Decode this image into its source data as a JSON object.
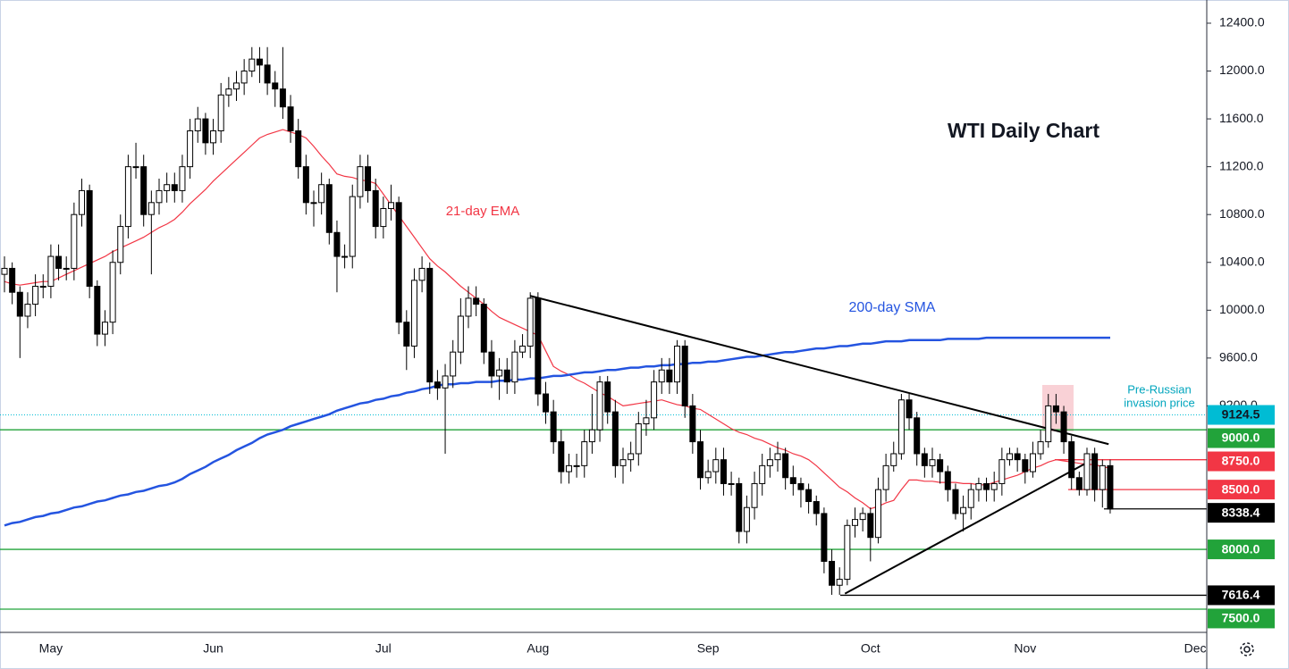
{
  "chart_data": {
    "type": "candlestick",
    "title": "WTI Daily Chart",
    "categories": [
      null,
      null,
      null,
      null,
      null,
      null,
      "May",
      null,
      null,
      null,
      null,
      null,
      null,
      null,
      null,
      null,
      null,
      null,
      null,
      null,
      null,
      null,
      null,
      null,
      null,
      null,
      null,
      "Jun",
      null,
      null,
      null,
      null,
      null,
      null,
      null,
      null,
      null,
      null,
      null,
      null,
      null,
      null,
      null,
      null,
      null,
      null,
      null,
      null,
      null,
      "Jul",
      null,
      null,
      null,
      null,
      null,
      null,
      null,
      null,
      null,
      null,
      null,
      null,
      null,
      null,
      null,
      null,
      null,
      null,
      null,
      "Aug",
      null,
      null,
      null,
      null,
      null,
      null,
      null,
      null,
      null,
      null,
      null,
      null,
      null,
      null,
      null,
      null,
      null,
      null,
      null,
      null,
      null,
      "Sep",
      null,
      null,
      null,
      null,
      null,
      null,
      null,
      null,
      null,
      null,
      null,
      null,
      null,
      null,
      null,
      null,
      null,
      null,
      null,
      null,
      "Oct",
      null,
      null,
      null,
      null,
      null,
      null,
      null,
      null,
      null,
      null,
      null,
      null,
      null,
      null,
      null,
      null,
      null,
      null,
      null,
      "Nov",
      null,
      null,
      null,
      null,
      null,
      null,
      null,
      null,
      null,
      null,
      null,
      null,
      null,
      null,
      null,
      null,
      null,
      null,
      null,
      null,
      null,
      "Dec",
      null,
      null,
      null,
      null,
      null
    ],
    "open": [
      10300,
      10350,
      10150,
      9950,
      10050,
      10200,
      10200,
      10450,
      10350,
      10350,
      10800,
      11000,
      10200,
      9800,
      9900,
      10400,
      10700,
      11200,
      11200,
      10800,
      10900,
      11000,
      11050,
      11000,
      11200,
      11500,
      11600,
      11400,
      11500,
      11800,
      11850,
      11900,
      12000,
      12100,
      12050,
      11900,
      11850,
      11700,
      11500,
      11200,
      10900,
      10900,
      11050,
      10650,
      10450,
      10450,
      10950,
      11200,
      11000,
      10700,
      10850,
      10900,
      9900,
      9700,
      10250,
      10350,
      9400,
      9350,
      9450,
      9650,
      9950,
      10100,
      10050,
      9650,
      9450,
      9500,
      9400,
      9650,
      9700,
      10100,
      9300,
      9150,
      8900,
      8650,
      8700,
      8700,
      8900,
      9000,
      9400,
      9150,
      8700,
      8750,
      8800,
      9050,
      9100,
      9400,
      9500,
      9400,
      9700,
      9200,
      8900,
      8600,
      8650,
      8750,
      8550,
      8550,
      8150,
      8350,
      8550,
      8700,
      8750,
      8800,
      8600,
      8550,
      8500,
      8400,
      8300,
      7900,
      7700,
      7750,
      8200,
      8250,
      8300,
      8100,
      8500,
      8700,
      8800,
      9250,
      9100,
      8800,
      8700,
      8750,
      8650,
      8500,
      8300,
      8350,
      8500,
      8550,
      8500,
      8550,
      8750,
      8800,
      8750,
      8650,
      8800,
      8900,
      9200,
      9150,
      8900,
      8600,
      8500,
      8800,
      8500,
      8700,
      null,
      null,
      null,
      null,
      null,
      null,
      null,
      null,
      null,
      null,
      null,
      null,
      null,
      null,
      null,
      null
    ],
    "high": [
      10450,
      10400,
      10200,
      10150,
      10300,
      10300,
      10550,
      10550,
      10450,
      10900,
      11100,
      11050,
      10250,
      10000,
      10500,
      10800,
      11300,
      11400,
      11300,
      11000,
      11100,
      11150,
      11150,
      11300,
      11600,
      11700,
      11650,
      11600,
      11900,
      11950,
      12000,
      12100,
      12200,
      12200,
      12200,
      12000,
      12200,
      11800,
      11600,
      11300,
      11000,
      11150,
      11100,
      10750,
      10550,
      11050,
      11300,
      11300,
      11100,
      10950,
      11050,
      10950,
      10000,
      10350,
      10450,
      10400,
      9500,
      9550,
      9750,
      10100,
      10200,
      10200,
      10100,
      9750,
      9600,
      9600,
      9750,
      9800,
      10150,
      10150,
      9400,
      9250,
      9000,
      8800,
      8800,
      9000,
      9300,
      9450,
      9450,
      9250,
      8850,
      8900,
      9150,
      9250,
      9500,
      9600,
      9600,
      9750,
      9750,
      9300,
      9000,
      8750,
      8850,
      8850,
      8650,
      8600,
      8450,
      8650,
      8800,
      8850,
      8900,
      8850,
      8700,
      8600,
      8550,
      8450,
      8350,
      8000,
      7850,
      8250,
      8350,
      8350,
      8350,
      8600,
      8800,
      8900,
      9300,
      9300,
      9150,
      8850,
      8850,
      8800,
      8700,
      8550,
      8450,
      8550,
      8600,
      8600,
      8650,
      8850,
      8850,
      8850,
      8800,
      8900,
      9000,
      9300,
      9300,
      9200,
      8950,
      8650,
      8850,
      8850,
      8750,
      8750,
      null,
      null,
      null,
      null,
      null,
      null,
      null,
      null,
      null,
      null,
      null,
      null,
      null,
      null,
      null,
      null
    ],
    "low": [
      10150,
      10050,
      9600,
      9850,
      9950,
      10100,
      10100,
      10250,
      10250,
      10250,
      10700,
      10100,
      9700,
      9700,
      9800,
      10300,
      10600,
      11100,
      10700,
      10300,
      10800,
      10900,
      10900,
      10900,
      11100,
      11400,
      11300,
      11300,
      11400,
      11700,
      11750,
      11800,
      11950,
      11900,
      11800,
      11700,
      11600,
      11400,
      11100,
      10800,
      10700,
      10800,
      10550,
      10150,
      10350,
      10350,
      10850,
      10900,
      10600,
      10600,
      10750,
      9800,
      9500,
      9600,
      10150,
      9300,
      9250,
      8800,
      9350,
      9550,
      9850,
      9950,
      9550,
      9350,
      9250,
      9300,
      9300,
      9600,
      9600,
      9200,
      9050,
      8800,
      8550,
      8550,
      8600,
      8600,
      8800,
      8900,
      9050,
      8600,
      8550,
      8650,
      8700,
      8950,
      9000,
      9300,
      9300,
      9300,
      9100,
      8800,
      8500,
      8550,
      8550,
      8450,
      8450,
      8050,
      8050,
      8250,
      8450,
      8600,
      8650,
      8500,
      8450,
      8350,
      8300,
      8200,
      7800,
      7620,
      7620,
      7700,
      8100,
      8150,
      7900,
      8050,
      8400,
      8650,
      8750,
      9000,
      8700,
      8600,
      8600,
      8550,
      8400,
      8250,
      8150,
      8250,
      8400,
      8400,
      8400,
      8450,
      8700,
      8650,
      8550,
      8600,
      8750,
      8850,
      9050,
      8800,
      8500,
      8450,
      8450,
      8400,
      8350,
      8300,
      null,
      null,
      null,
      null,
      null,
      null,
      null,
      null,
      null,
      null,
      null,
      null,
      null,
      null,
      null,
      null
    ],
    "close": [
      10350,
      10150,
      9950,
      10050,
      10200,
      10200,
      10450,
      10350,
      10350,
      10800,
      11000,
      10200,
      9800,
      9900,
      10400,
      10700,
      11200,
      11200,
      10800,
      10900,
      11000,
      11050,
      11000,
      11200,
      11500,
      11600,
      11400,
      11500,
      11800,
      11850,
      11900,
      12000,
      12100,
      12050,
      11900,
      11850,
      11700,
      11500,
      11200,
      10900,
      10900,
      11050,
      10650,
      10450,
      10450,
      10950,
      11200,
      11000,
      10700,
      10850,
      10900,
      9900,
      9700,
      10250,
      10350,
      9400,
      9350,
      9450,
      9650,
      9950,
      10100,
      10050,
      9650,
      9450,
      9500,
      9400,
      9650,
      9700,
      10100,
      9300,
      9150,
      8900,
      8650,
      8700,
      8700,
      8900,
      9000,
      9400,
      9150,
      8700,
      8750,
      8800,
      9050,
      9100,
      9400,
      9500,
      9400,
      9700,
      9200,
      8900,
      8600,
      8650,
      8750,
      8550,
      8550,
      8150,
      8350,
      8550,
      8700,
      8750,
      8800,
      8600,
      8550,
      8500,
      8400,
      8300,
      7900,
      7700,
      7750,
      8200,
      8250,
      8300,
      8100,
      8500,
      8700,
      8800,
      9250,
      9100,
      8800,
      8700,
      8750,
      8650,
      8500,
      8300,
      8350,
      8500,
      8550,
      8500,
      8550,
      8750,
      8800,
      8750,
      8650,
      8800,
      8900,
      9200,
      9150,
      8900,
      8600,
      8500,
      8800,
      8500,
      8700,
      8338,
      null,
      null,
      null,
      null,
      null,
      null,
      null,
      null,
      null,
      null,
      null,
      null,
      null,
      null,
      null,
      null
    ],
    "up_color": "#ffffff",
    "down_color": "#000000",
    "series": [
      {
        "name": "21-day EMA",
        "color": "#f23645",
        "values": [
          10240,
          10220,
          10210,
          10220,
          10230,
          10240,
          10240,
          10270,
          10300,
          10330,
          10360,
          10390,
          10420,
          10450,
          10490,
          10520,
          10550,
          10580,
          10610,
          10650,
          10690,
          10720,
          10760,
          10820,
          10890,
          10950,
          11010,
          11080,
          11140,
          11200,
          11260,
          11320,
          11380,
          11440,
          11470,
          11490,
          11510,
          11490,
          11470,
          11440,
          11370,
          11290,
          11220,
          11140,
          11120,
          11110,
          11090,
          11080,
          11060,
          10970,
          10880,
          10790,
          10700,
          10610,
          10520,
          10430,
          10370,
          10320,
          10260,
          10200,
          10150,
          10100,
          10050,
          9990,
          9940,
          9910,
          9880,
          9850,
          9820,
          9790,
          9660,
          9530,
          9490,
          9460,
          9420,
          9390,
          9350,
          9310,
          9280,
          9240,
          9200,
          9210,
          9220,
          9230,
          9240,
          9250,
          9230,
          9210,
          9200,
          9180,
          9170,
          9130,
          9090,
          9050,
          9010,
          8980,
          8960,
          8930,
          8910,
          8880,
          8850,
          8830,
          8800,
          8780,
          8750,
          8700,
          8640,
          8580,
          8520,
          8480,
          8430,
          8390,
          8340,
          8360,
          8390,
          8410,
          8500,
          8580,
          8580,
          8570,
          8570,
          8560,
          8560,
          8560,
          8550,
          8550,
          8540,
          8540,
          8560,
          8580,
          8600,
          8620,
          8650,
          8680,
          8700,
          8730,
          8750,
          8740,
          8730,
          8720,
          8710,
          8710,
          8690,
          8680,
          null,
          null,
          null,
          null,
          null,
          null,
          null,
          null,
          null,
          null,
          null,
          null,
          null,
          null,
          null,
          null
        ]
      },
      {
        "name": "200-day SMA",
        "color": "#2454e0",
        "values": [
          8200,
          8220,
          8230,
          8250,
          8270,
          8280,
          8300,
          8310,
          8330,
          8350,
          8360,
          8380,
          8400,
          8410,
          8430,
          8450,
          8460,
          8480,
          8490,
          8510,
          8530,
          8540,
          8560,
          8590,
          8630,
          8660,
          8690,
          8730,
          8760,
          8790,
          8830,
          8860,
          8890,
          8930,
          8960,
          8980,
          9000,
          9030,
          9050,
          9070,
          9090,
          9110,
          9130,
          9160,
          9180,
          9200,
          9220,
          9230,
          9250,
          9260,
          9280,
          9290,
          9310,
          9320,
          9340,
          9350,
          9370,
          9380,
          9380,
          9390,
          9390,
          9400,
          9400,
          9400,
          9410,
          9410,
          9420,
          9420,
          9430,
          9430,
          9440,
          9450,
          9450,
          9460,
          9470,
          9480,
          9480,
          9490,
          9500,
          9500,
          9510,
          9520,
          9520,
          9530,
          9530,
          9540,
          9540,
          9550,
          9550,
          9560,
          9560,
          9570,
          9570,
          9580,
          9590,
          9600,
          9610,
          9610,
          9620,
          9630,
          9640,
          9650,
          9650,
          9660,
          9670,
          9680,
          9680,
          9690,
          9700,
          9700,
          9710,
          9720,
          9720,
          9730,
          9740,
          9740,
          9740,
          9750,
          9750,
          9750,
          9750,
          9750,
          9760,
          9760,
          9760,
          9760,
          9760,
          9770,
          9770,
          9770,
          9770,
          9770,
          9770,
          9770,
          9770,
          9770,
          9770,
          9770,
          9770,
          9770,
          9770,
          9770,
          9770,
          9770,
          null,
          null,
          null,
          null,
          null,
          null,
          null,
          null,
          null,
          null,
          null,
          null,
          null,
          null,
          null,
          null
        ]
      }
    ],
    "ylim": [
      7306,
      12594
    ],
    "yticks": [
      {
        "value": 12400,
        "label": "12400.0"
      },
      {
        "value": 12000,
        "label": "12000.0"
      },
      {
        "value": 11600,
        "label": "11600.0"
      },
      {
        "value": 11200,
        "label": "11200.0"
      },
      {
        "value": 10800,
        "label": "10800.0"
      },
      {
        "value": 10400,
        "label": "10400.0"
      },
      {
        "value": 10000,
        "label": "10000.0"
      },
      {
        "value": 9600,
        "label": "9600.0"
      },
      {
        "value": 9200,
        "label": "9200.0"
      }
    ],
    "grid": false,
    "levels": [
      {
        "value": 9124.5,
        "label": "9124.5",
        "color": "#00bcd4"
      },
      {
        "value": 9000,
        "label": "9000.0",
        "color": "#22a33a"
      },
      {
        "value": 8750,
        "label": "8750.0",
        "color": "#f23645"
      },
      {
        "value": 8500,
        "label": "8500.0",
        "color": "#f23645"
      },
      {
        "value": 8338.4,
        "label": "8338.4",
        "color": "#000000"
      },
      {
        "value": 8000,
        "label": "8000.0",
        "color": "#22a33a"
      },
      {
        "value": 7616.4,
        "label": "7616.4",
        "color": "#000000"
      },
      {
        "value": 7500,
        "label": "7500.0",
        "color": "#22a33a"
      }
    ],
    "trendlines": [
      {
        "values": [
          10120,
          8880
        ]
      },
      {
        "values": [
          7630,
          8725
        ]
      }
    ],
    "annotation": [
      "Pre-Russian",
      "invasion price"
    ],
    "annotation_color": "#00a5bd"
  }
}
